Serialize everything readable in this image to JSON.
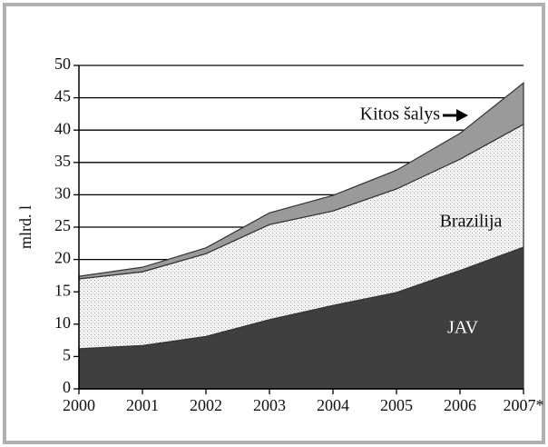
{
  "chart_data": {
    "type": "stacked_area",
    "y_label": "mlrd. l",
    "categories": [
      "2000",
      "2001",
      "2002",
      "2003",
      "2004",
      "2005",
      "2006",
      "2007*"
    ],
    "series": [
      {
        "name": "JAV",
        "color": "#3f3f3f",
        "values": [
          6.2,
          6.7,
          8.1,
          10.7,
          12.9,
          14.9,
          18.3,
          21.9
        ]
      },
      {
        "name": "Brazilija",
        "color": "#f4f4f4",
        "values": [
          10.8,
          11.4,
          12.8,
          14.7,
          14.6,
          16.0,
          17.2,
          19.0
        ]
      },
      {
        "name": "Kitos šalys",
        "color": "#9a9a9a",
        "values": [
          0.4,
          0.7,
          0.9,
          1.8,
          2.4,
          2.9,
          4.0,
          6.4
        ]
      }
    ],
    "ylim": [
      0,
      50
    ],
    "yticks": [
      0,
      5,
      10,
      15,
      20,
      25,
      30,
      35,
      40,
      45,
      50
    ],
    "grid": true
  }
}
